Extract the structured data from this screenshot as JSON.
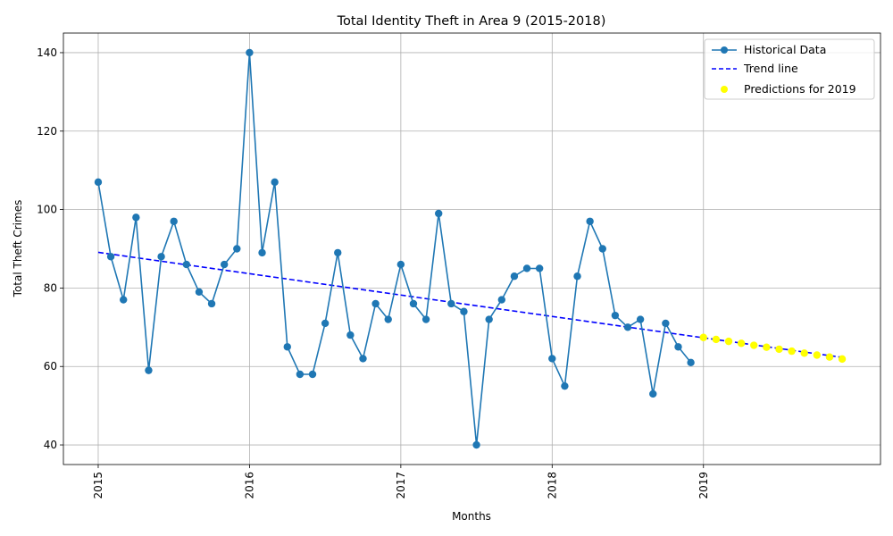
{
  "chart_data": {
    "type": "line",
    "title": "Total Identity Theft in Area 9 (2015-2018)",
    "xlabel": "Months",
    "ylabel": "Total Theft Crimes",
    "xlim": [
      2014.77,
      2020.17
    ],
    "ylim": [
      35,
      145
    ],
    "x_tick_values": [
      2015,
      2016,
      2017,
      2018,
      2019
    ],
    "x_tick_labels": [
      "2015",
      "2016",
      "2017",
      "2018",
      "2019"
    ],
    "y_tick_values": [
      40,
      60,
      80,
      100,
      120,
      140
    ],
    "y_tick_labels": [
      "40",
      "60",
      "80",
      "100",
      "120",
      "140"
    ],
    "grid": true,
    "legend_position": "top-right",
    "colors": {
      "historical": "#1f77b4",
      "trend": "#0000ff",
      "prediction": "#ffff00"
    },
    "series": [
      {
        "name": "Historical Data",
        "style": "line-marker",
        "x_start": 2015,
        "x_step": 0.08333,
        "values": [
          107,
          88,
          77,
          98,
          59,
          88,
          97,
          86,
          79,
          76,
          86,
          90,
          140,
          89,
          107,
          65,
          58,
          58,
          71,
          89,
          68,
          62,
          76,
          72,
          86,
          76,
          72,
          99,
          76,
          74,
          40,
          72,
          77,
          83,
          85,
          85,
          62,
          55,
          83,
          97,
          90,
          73,
          70,
          72,
          53,
          71,
          65,
          61
        ]
      },
      {
        "name": "Trend line",
        "style": "dashed",
        "x": [
          2015,
          2019.92
        ],
        "values": [
          89.1,
          62.3
        ]
      },
      {
        "name": "Predictions for 2019",
        "style": "scatter",
        "x_start": 2019,
        "x_step": 0.08333,
        "values": [
          67.4,
          66.9,
          66.4,
          65.9,
          65.4,
          64.9,
          64.4,
          63.9,
          63.4,
          62.9,
          62.4,
          61.9
        ]
      }
    ]
  }
}
